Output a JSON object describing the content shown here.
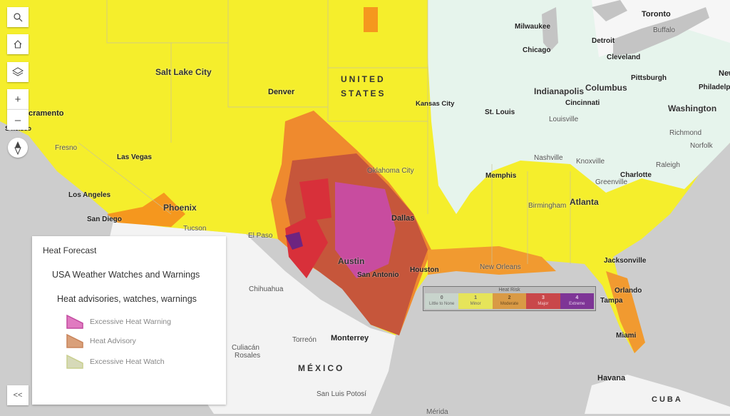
{
  "toolbar": {
    "search_icon": "search-icon",
    "home_icon": "home-icon",
    "layers_icon": "layers-icon",
    "zoom_in_label": "+",
    "zoom_out_label": "–",
    "compass_icon": "compass-icon",
    "collapse_label": "<<"
  },
  "map": {
    "countries": {
      "us_line1": "UNITED",
      "us_line2": "STATES",
      "mexico": "MÉXICO",
      "cuba": "CUBA"
    },
    "cities": {
      "salt_lake_city": "Salt Lake City",
      "denver": "Denver",
      "sacramento": "cramento",
      "san_francisco": "S    ncisco",
      "fresno": "Fresno",
      "las_vegas": "Las Vegas",
      "los_angeles": "Los Angeles",
      "san_diego": "San Diego",
      "phoenix": "Phoenix",
      "tucson": "Tucson",
      "el_paso": "El Paso",
      "kansas_city": "Kansas City",
      "oklahoma_city": "Oklahoma City",
      "dallas": "Dallas",
      "austin": "Austin",
      "san_antonio": "San Antonio",
      "houston": "Houston",
      "chihuahua": "Chihuahua",
      "torreon": "Torreón",
      "monterrey": "Monterrey",
      "culiacan": "Culiacán",
      "rosales": "Rosales",
      "san_luis_potosi": "San Luis Potosí",
      "merida": "Mérida",
      "havana": "Havana",
      "new_orleans": "New Orleans",
      "memphis": "Memphis",
      "birmingham": "Birmingham",
      "atlanta": "Atlanta",
      "nashville": "Nashville",
      "knoxville": "Knoxville",
      "charlotte": "Charlotte",
      "greenville": "Greenville",
      "raleigh": "Raleigh",
      "jacksonville": "Jacksonville",
      "orlando": "Orlando",
      "tampa": "Tampa",
      "miami": "Miami",
      "st_louis": "St. Louis",
      "chicago": "Chicago",
      "milwaukee": "Milwaukee",
      "indianapolis": "Indianapolis",
      "columbus": "Columbus",
      "cincinnati": "Cincinnati",
      "louisville": "Louisville",
      "detroit": "Detroit",
      "cleveland": "Cleveland",
      "pittsburgh": "Pittsburgh",
      "toronto": "Toronto",
      "buffalo": "Buffalo",
      "washington": "Washington",
      "richmond": "Richmond",
      "norfolk": "Norfolk",
      "philadelphia": "Philadelphi",
      "new_york": "New"
    }
  },
  "legend": {
    "title": "Heat Forecast",
    "layer": "USA Weather Watches and Warnings",
    "sublayer": "Heat advisories, watches, warnings",
    "items": [
      {
        "label": "Excessive Heat Warning",
        "color": "#e07ac0"
      },
      {
        "label": "Heat Advisory",
        "color": "#d9a07a"
      },
      {
        "label": "Excessive Heat Watch",
        "color": "#d6d9b8"
      }
    ]
  },
  "heat_risk": {
    "title": "Heat Risk",
    "levels": [
      {
        "value": "0",
        "label": "Little to None",
        "color": "#c8d4cc"
      },
      {
        "value": "1",
        "label": "Minor",
        "color": "#e6e45a"
      },
      {
        "value": "2",
        "label": "Moderate",
        "color": "#d99a45"
      },
      {
        "value": "3",
        "label": "Major",
        "color": "#c9474a"
      },
      {
        "value": "4",
        "label": "Extreme",
        "color": "#7e3596"
      }
    ]
  }
}
